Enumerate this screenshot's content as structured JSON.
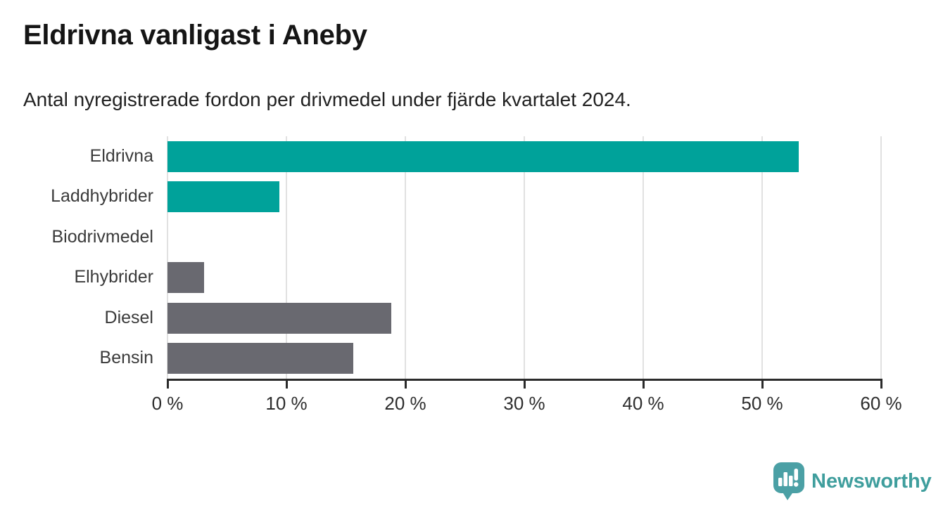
{
  "header": {
    "title": "Eldrivna vanligast i Aneby",
    "subtitle": "Antal nyregistrerade fordon per drivmedel under fjärde kvartalet 2024."
  },
  "chart_data": {
    "type": "bar",
    "orientation": "horizontal",
    "title": "Eldrivna vanligast i Aneby",
    "subtitle": "Antal nyregistrerade fordon per drivmedel under fjärde kvartalet 2024.",
    "categories": [
      "Eldrivna",
      "Laddhybrider",
      "Biodrivmedel",
      "Elhybrider",
      "Diesel",
      "Bensin"
    ],
    "values": [
      53.1,
      9.4,
      0,
      3.1,
      18.8,
      15.6
    ],
    "unit": "%",
    "xlim": [
      0,
      60
    ],
    "tick_step": 10,
    "x_tick_labels": [
      "0 %",
      "10 %",
      "20 %",
      "30 %",
      "40 %",
      "50 %",
      "60 %"
    ],
    "grid": true,
    "legend": "none",
    "colors": {
      "highlight": "#00a29a",
      "muted": "#696970",
      "gridline": "#e1e1e1",
      "axis": "#2b2b2b"
    },
    "bar_colors": [
      "#00a29a",
      "#00a29a",
      "#696970",
      "#696970",
      "#696970",
      "#696970"
    ]
  },
  "branding": {
    "logo_text": "Newsworthy",
    "logo_text_color": "#3f9e9d",
    "logo_icon": "speech-bubble-bar-chart-exclamation",
    "logo_icon_color": "#4ba0a5"
  }
}
